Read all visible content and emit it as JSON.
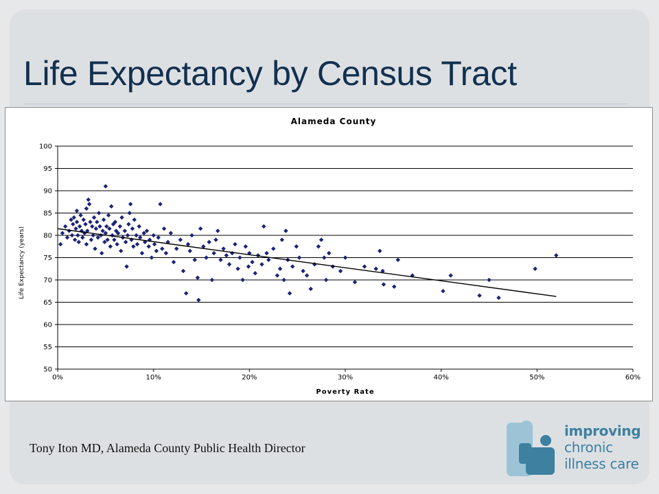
{
  "slide": {
    "title": "Life Expectancy by Census Tract",
    "credit": "Tony Iton MD, Alameda County Public Health Director"
  },
  "logo": {
    "line1": "improving",
    "line2": "chronic",
    "line3": "illness care"
  },
  "colors": {
    "title": "#12304f",
    "points": "#1a237e",
    "trend": "#000000",
    "logo_light": "#9cc3d6",
    "logo_dark": "#3d80a0"
  },
  "chart_data": {
    "type": "scatter",
    "title": "Alameda County",
    "xlabel": "Poverty Rate",
    "ylabel": "Life Expectancy (years)",
    "xlim": [
      0,
      0.6
    ],
    "ylim": [
      50,
      100
    ],
    "x_ticks": [
      0,
      0.1,
      0.2,
      0.3,
      0.4,
      0.5,
      0.6
    ],
    "x_tick_labels": [
      "0%",
      "10%",
      "20%",
      "30%",
      "40%",
      "50%",
      "60%"
    ],
    "y_ticks": [
      50,
      55,
      60,
      65,
      70,
      75,
      80,
      85,
      90,
      95,
      100
    ],
    "y_tick_labels": [
      "50",
      "55",
      "60",
      "65",
      "70",
      "75",
      "80",
      "85",
      "90",
      "95",
      "100"
    ],
    "grid": "horizontal",
    "legend": "none",
    "series": [
      {
        "marker": "diamond",
        "points": [
          [
            0.003,
            78.0
          ],
          [
            0.005,
            80.5
          ],
          [
            0.008,
            82.0
          ],
          [
            0.01,
            79.5
          ],
          [
            0.012,
            81.0
          ],
          [
            0.014,
            83.5
          ],
          [
            0.015,
            80.0
          ],
          [
            0.016,
            82.5
          ],
          [
            0.017,
            84.0
          ],
          [
            0.018,
            79.0
          ],
          [
            0.019,
            81.5
          ],
          [
            0.02,
            83.0
          ],
          [
            0.02,
            85.5
          ],
          [
            0.021,
            80.0
          ],
          [
            0.022,
            78.5
          ],
          [
            0.023,
            82.0
          ],
          [
            0.024,
            84.5
          ],
          [
            0.025,
            81.0
          ],
          [
            0.026,
            79.5
          ],
          [
            0.027,
            83.5
          ],
          [
            0.028,
            80.5
          ],
          [
            0.029,
            82.5
          ],
          [
            0.03,
            78.0
          ],
          [
            0.03,
            86.0
          ],
          [
            0.031,
            81.0
          ],
          [
            0.032,
            88.0
          ],
          [
            0.033,
            87.0
          ],
          [
            0.034,
            83.0
          ],
          [
            0.035,
            79.0
          ],
          [
            0.036,
            82.0
          ],
          [
            0.037,
            80.0
          ],
          [
            0.038,
            84.0
          ],
          [
            0.039,
            77.0
          ],
          [
            0.04,
            81.5
          ],
          [
            0.041,
            83.0
          ],
          [
            0.042,
            79.5
          ],
          [
            0.043,
            85.0
          ],
          [
            0.044,
            82.0
          ],
          [
            0.045,
            80.0
          ],
          [
            0.046,
            76.0
          ],
          [
            0.047,
            81.0
          ],
          [
            0.048,
            83.5
          ],
          [
            0.049,
            78.5
          ],
          [
            0.05,
            80.5
          ],
          [
            0.05,
            91.0
          ],
          [
            0.051,
            82.0
          ],
          [
            0.052,
            79.0
          ],
          [
            0.053,
            84.5
          ],
          [
            0.054,
            81.5
          ],
          [
            0.055,
            77.5
          ],
          [
            0.056,
            86.5
          ],
          [
            0.057,
            80.0
          ],
          [
            0.058,
            82.5
          ],
          [
            0.059,
            79.0
          ],
          [
            0.06,
            83.0
          ],
          [
            0.061,
            81.0
          ],
          [
            0.062,
            78.0
          ],
          [
            0.063,
            80.5
          ],
          [
            0.065,
            82.0
          ],
          [
            0.066,
            76.5
          ],
          [
            0.067,
            84.0
          ],
          [
            0.068,
            79.5
          ],
          [
            0.07,
            81.0
          ],
          [
            0.071,
            78.5
          ],
          [
            0.072,
            73.0
          ],
          [
            0.073,
            80.0
          ],
          [
            0.074,
            82.5
          ],
          [
            0.075,
            85.0
          ],
          [
            0.076,
            87.0
          ],
          [
            0.077,
            79.0
          ],
          [
            0.078,
            81.5
          ],
          [
            0.079,
            77.5
          ],
          [
            0.08,
            83.5
          ],
          [
            0.082,
            80.0
          ],
          [
            0.083,
            78.0
          ],
          [
            0.085,
            82.0
          ],
          [
            0.086,
            79.5
          ],
          [
            0.088,
            76.0
          ],
          [
            0.09,
            80.5
          ],
          [
            0.091,
            78.5
          ],
          [
            0.093,
            81.0
          ],
          [
            0.095,
            77.5
          ],
          [
            0.096,
            79.0
          ],
          [
            0.098,
            75.0
          ],
          [
            0.1,
            80.0
          ],
          [
            0.101,
            78.0
          ],
          [
            0.103,
            76.5
          ],
          [
            0.105,
            79.5
          ],
          [
            0.107,
            87.0
          ],
          [
            0.109,
            77.0
          ],
          [
            0.111,
            81.5
          ],
          [
            0.113,
            76.0
          ],
          [
            0.115,
            78.5
          ],
          [
            0.118,
            80.5
          ],
          [
            0.121,
            74.0
          ],
          [
            0.124,
            77.0
          ],
          [
            0.128,
            79.0
          ],
          [
            0.131,
            72.0
          ],
          [
            0.134,
            67.0
          ],
          [
            0.136,
            78.0
          ],
          [
            0.138,
            76.5
          ],
          [
            0.14,
            80.0
          ],
          [
            0.143,
            74.5
          ],
          [
            0.146,
            70.5
          ],
          [
            0.147,
            65.5
          ],
          [
            0.149,
            81.5
          ],
          [
            0.152,
            77.5
          ],
          [
            0.155,
            75.0
          ],
          [
            0.158,
            78.5
          ],
          [
            0.161,
            70.0
          ],
          [
            0.163,
            76.0
          ],
          [
            0.165,
            79.0
          ],
          [
            0.167,
            81.0
          ],
          [
            0.17,
            74.5
          ],
          [
            0.173,
            77.0
          ],
          [
            0.176,
            75.5
          ],
          [
            0.179,
            73.5
          ],
          [
            0.182,
            76.0
          ],
          [
            0.185,
            78.0
          ],
          [
            0.188,
            72.5
          ],
          [
            0.19,
            75.0
          ],
          [
            0.193,
            70.0
          ],
          [
            0.196,
            77.5
          ],
          [
            0.199,
            73.0
          ],
          [
            0.2,
            76.0
          ],
          [
            0.203,
            74.0
          ],
          [
            0.206,
            71.5
          ],
          [
            0.209,
            75.5
          ],
          [
            0.213,
            73.5
          ],
          [
            0.215,
            82.0
          ],
          [
            0.218,
            76.0
          ],
          [
            0.22,
            74.5
          ],
          [
            0.225,
            77.0
          ],
          [
            0.229,
            71.0
          ],
          [
            0.232,
            72.5
          ],
          [
            0.234,
            79.0
          ],
          [
            0.236,
            70.0
          ],
          [
            0.238,
            81.0
          ],
          [
            0.24,
            74.5
          ],
          [
            0.242,
            67.0
          ],
          [
            0.245,
            73.0
          ],
          [
            0.249,
            77.5
          ],
          [
            0.252,
            75.0
          ],
          [
            0.256,
            72.0
          ],
          [
            0.26,
            71.0
          ],
          [
            0.264,
            68.0
          ],
          [
            0.268,
            73.5
          ],
          [
            0.272,
            77.5
          ],
          [
            0.275,
            79.0
          ],
          [
            0.278,
            75.0
          ],
          [
            0.28,
            70.0
          ],
          [
            0.283,
            76.0
          ],
          [
            0.287,
            73.0
          ],
          [
            0.295,
            72.0
          ],
          [
            0.3,
            75.0
          ],
          [
            0.31,
            69.5
          ],
          [
            0.32,
            73.0
          ],
          [
            0.332,
            72.5
          ],
          [
            0.336,
            76.5
          ],
          [
            0.339,
            72.0
          ],
          [
            0.34,
            69.0
          ],
          [
            0.351,
            68.5
          ],
          [
            0.355,
            74.5
          ],
          [
            0.37,
            71.0
          ],
          [
            0.402,
            67.5
          ],
          [
            0.41,
            71.0
          ],
          [
            0.44,
            66.5
          ],
          [
            0.45,
            70.0
          ],
          [
            0.46,
            66.0
          ],
          [
            0.498,
            72.5
          ],
          [
            0.52,
            75.5
          ]
        ]
      },
      {
        "name": "",
        "line_from": [
          0,
          81.5
        ],
        "line_to": [
          0.52,
          66.3
        ]
      }
    ]
  }
}
